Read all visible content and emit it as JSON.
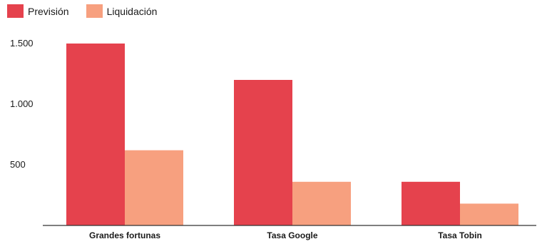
{
  "chart_data": {
    "type": "bar",
    "categories": [
      "Grandes fortunas",
      "Tasa Google",
      "Tasa Tobin"
    ],
    "series": [
      {
        "name": "Previsión",
        "values": [
          1500,
          1200,
          360
        ],
        "color": "#e5424d"
      },
      {
        "name": "Liquidación",
        "values": [
          620,
          360,
          180
        ],
        "color": "#f7a07f"
      }
    ],
    "y_ticks": [
      {
        "value": 500,
        "label": "500"
      },
      {
        "value": 1000,
        "label": "1.000"
      },
      {
        "value": 1500,
        "label": "1.500"
      }
    ],
    "ylim": [
      0,
      1600
    ],
    "grid": false,
    "legend_position": "top-left"
  }
}
